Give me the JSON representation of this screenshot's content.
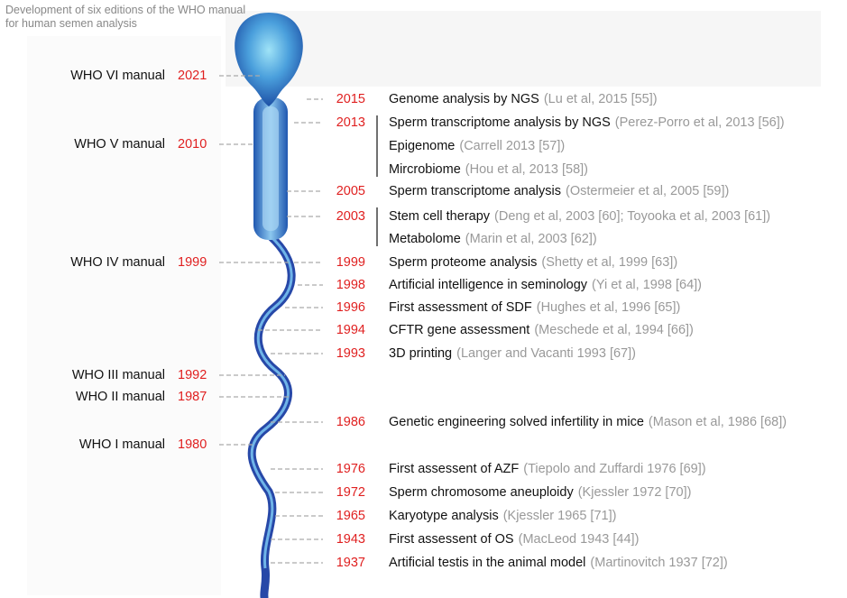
{
  "title": "Development of six editions of the WHO manual for human semen analysis",
  "manuals": [
    {
      "name": "WHO VI manual",
      "year": "2021"
    },
    {
      "name": "WHO V manual",
      "year": "2010"
    },
    {
      "name": "WHO IV manual",
      "year": "1999"
    },
    {
      "name": "WHO III manual",
      "year": "1992"
    },
    {
      "name": "WHO II manual",
      "year": "1987"
    },
    {
      "name": "WHO I manual",
      "year": "1980"
    }
  ],
  "events": [
    {
      "year": "2015",
      "label": "Genome analysis by NGS",
      "citation": "(Lu et al, 2015 [55])"
    },
    {
      "year": "2013",
      "label": "Sperm transcriptome analysis by NGS",
      "citation": "(Perez-Porro et al, 2013 [56])"
    },
    {
      "year": null,
      "label": "Epigenome",
      "citation": "(Carrell 2013 [57])"
    },
    {
      "year": null,
      "label": "Mircrobiome",
      "citation": "(Hou et al, 2013 [58])"
    },
    {
      "year": "2005",
      "label": "Sperm transcriptome analysis",
      "citation": "(Ostermeier et al, 2005 [59])"
    },
    {
      "year": "2003",
      "label": "Stem cell therapy",
      "citation": "(Deng et al, 2003 [60]; Toyooka et al, 2003 [61])"
    },
    {
      "year": null,
      "label": "Metabolome",
      "citation": "(Marin et al, 2003 [62])"
    },
    {
      "year": "1999",
      "label": "Sperm proteome analysis",
      "citation": "(Shetty et al, 1999 [63])"
    },
    {
      "year": "1998",
      "label": "Artificial intelligence in seminology",
      "citation": "(Yi et al, 1998 [64])"
    },
    {
      "year": "1996",
      "label": "First assessment of SDF",
      "citation": "(Hughes et al, 1996 [65])"
    },
    {
      "year": "1994",
      "label": "CFTR gene assessment",
      "citation": "(Meschede et al, 1994 [66])"
    },
    {
      "year": "1993",
      "label": "3D printing",
      "citation": "(Langer and Vacanti 1993 [67])"
    },
    {
      "year": "1986",
      "label": "Genetic engineering solved infertility in mice",
      "citation": "(Mason et al, 1986 [68])"
    },
    {
      "year": "1976",
      "label": "First assessent of AZF",
      "citation": "(Tiepolo and Zuffardi 1976 [69])"
    },
    {
      "year": "1972",
      "label": "Sperm chromosome aneuploidy",
      "citation": "(Kjessler 1972 [70])"
    },
    {
      "year": "1965",
      "label": "Karyotype analysis",
      "citation": "(Kjessler 1965 [71])"
    },
    {
      "year": "1943",
      "label": "First assessent of OS",
      "citation": "(MacLeod 1943 [44])"
    },
    {
      "year": "1937",
      "label": "Artificial testis in the animal model",
      "citation": "(Martinovitch 1937 [72])"
    }
  ]
}
